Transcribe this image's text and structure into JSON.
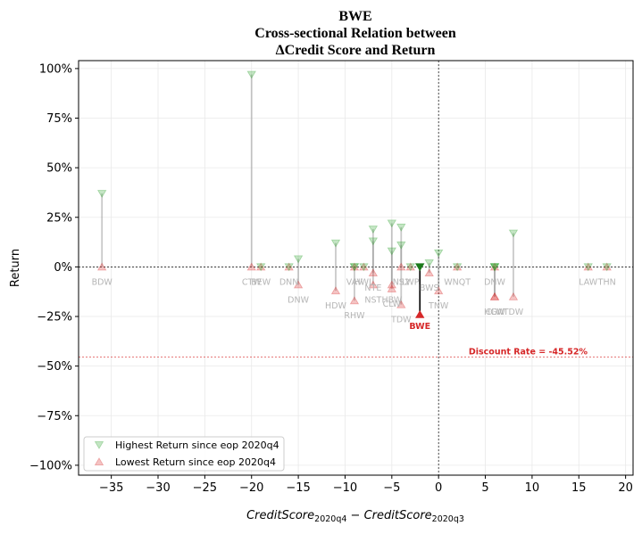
{
  "chart_data": {
    "type": "scatter",
    "title_lines": [
      "BWE",
      "Cross-sectional Relation between",
      "ΔCredit Score and Return"
    ],
    "xlabel": "CreditScore2020q4 − CreditScore2020q3",
    "ylabel": "Return",
    "xlim": [
      -38.5,
      20.8
    ],
    "ylim": [
      -105,
      104
    ],
    "xticks": [
      -35,
      -30,
      -25,
      -20,
      -15,
      -10,
      -5,
      0,
      5,
      10,
      15,
      20
    ],
    "xtick_labels": [
      "−35",
      "−30",
      "−25",
      "−20",
      "−15",
      "−10",
      "−5",
      "0",
      "5",
      "10",
      "15",
      "20"
    ],
    "yticks": [
      -100,
      -75,
      -50,
      -25,
      0,
      25,
      50,
      75,
      100
    ],
    "ytick_labels": [
      "−100%",
      "−75%",
      "−50%",
      "−25%",
      "0%",
      "25%",
      "50%",
      "75%",
      "100%"
    ],
    "grid": true,
    "legend_position": "lower-left",
    "series": [
      {
        "name": "Highest Return since eop 2020q4",
        "marker": "triangle-down",
        "color": "#2ca02c"
      },
      {
        "name": "Lowest Return since eop 2020q4",
        "marker": "triangle-up",
        "color": "#d62728"
      }
    ],
    "stocks": [
      {
        "label": "BDW",
        "x": -36,
        "high": 37,
        "low": 0
      },
      {
        "label": "CTW",
        "x": -20,
        "high": 97,
        "low": 0
      },
      {
        "label": "BEW",
        "x": -19,
        "high": 0,
        "low": 0
      },
      {
        "label": "DNN",
        "x": -16,
        "high": 0,
        "low": 0
      },
      {
        "label": "DNW",
        "x": -15,
        "high": 4,
        "low": -9
      },
      {
        "label": "HDW",
        "x": -11,
        "high": 12,
        "low": -12
      },
      {
        "label": "RHW",
        "x": -9,
        "high": 0,
        "low": -17
      },
      {
        "label": "VAV",
        "x": -9,
        "high": 0,
        "low": 0
      },
      {
        "label": "HWL",
        "x": -8,
        "high": 0,
        "low": 0
      },
      {
        "label": "NTE",
        "x": -7,
        "high": 19,
        "low": -3
      },
      {
        "label": "NST",
        "x": -7,
        "high": 13,
        "low": -9
      },
      {
        "label": "CLW",
        "x": -5,
        "high": 22,
        "low": -11
      },
      {
        "label": "HBW",
        "x": -5,
        "high": 8,
        "low": -9
      },
      {
        "label": "TDW",
        "x": -4,
        "high": 20,
        "low": -19
      },
      {
        "label": "NS2",
        "x": -4,
        "high": 11,
        "low": 0
      },
      {
        "label": "LWP",
        "x": -3,
        "high": 0,
        "low": 0
      },
      {
        "label": "BWS",
        "x": -1,
        "high": 2,
        "low": -3
      },
      {
        "label": "TNW",
        "x": 0,
        "high": 7,
        "low": -12
      },
      {
        "label": "WNQT",
        "x": 2,
        "high": 0,
        "low": 0
      },
      {
        "label": "CLW",
        "x": 6,
        "high": 0,
        "low": -15
      },
      {
        "label": "DNW",
        "x": 6,
        "high": 0,
        "low": 0
      },
      {
        "label": "HGW",
        "x": 6,
        "high": 0,
        "low": -15
      },
      {
        "label": "TDW",
        "x": 8,
        "high": 17,
        "low": -15
      },
      {
        "label": "LAW",
        "x": 16,
        "high": 0,
        "low": 0
      },
      {
        "label": "THN",
        "x": 18,
        "high": 0,
        "low": 0
      }
    ],
    "focus": {
      "label": "BWE",
      "x": -2,
      "high": 0,
      "low": -24
    },
    "reference_line": {
      "label": "Discount Rate = -45.52%",
      "y": -45.52
    }
  }
}
